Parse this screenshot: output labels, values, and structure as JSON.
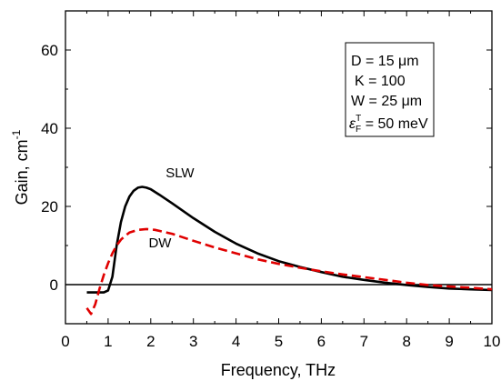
{
  "chart_data": {
    "type": "line",
    "xlabel": "Frequency, THz",
    "ylabel_main": "Gain, cm",
    "ylabel_sup": "-1",
    "xlim": [
      0,
      10
    ],
    "ylim": [
      -10,
      70
    ],
    "xticks": [
      0,
      1,
      2,
      3,
      4,
      5,
      6,
      7,
      8,
      9,
      10
    ],
    "yticks": [
      0,
      20,
      40,
      60
    ],
    "grid": false,
    "zero_line": true,
    "series": [
      {
        "name": "SLW",
        "color": "#000000",
        "dash": "solid",
        "points": [
          [
            0.5,
            -2
          ],
          [
            0.9,
            -2
          ],
          [
            1.0,
            -1.5
          ],
          [
            1.1,
            2
          ],
          [
            1.2,
            10
          ],
          [
            1.3,
            16
          ],
          [
            1.4,
            20
          ],
          [
            1.5,
            22.5
          ],
          [
            1.6,
            24
          ],
          [
            1.7,
            24.8
          ],
          [
            1.8,
            25
          ],
          [
            1.9,
            24.8
          ],
          [
            2.0,
            24.4
          ],
          [
            2.2,
            23
          ],
          [
            2.5,
            20.8
          ],
          [
            3.0,
            17
          ],
          [
            3.5,
            13.5
          ],
          [
            4.0,
            10.5
          ],
          [
            4.5,
            8
          ],
          [
            5.0,
            6
          ],
          [
            5.5,
            4.5
          ],
          [
            6.0,
            3.2
          ],
          [
            6.5,
            2
          ],
          [
            7.0,
            1.2
          ],
          [
            7.5,
            0.5
          ],
          [
            8.0,
            -0.1
          ],
          [
            8.5,
            -0.6
          ],
          [
            9.0,
            -1
          ],
          [
            9.5,
            -1.2
          ],
          [
            10.0,
            -1.4
          ]
        ]
      },
      {
        "name": "DW",
        "color": "#e00000",
        "dash": "dashed",
        "points": [
          [
            0.5,
            -6
          ],
          [
            0.6,
            -7.5
          ],
          [
            0.7,
            -5
          ],
          [
            0.8,
            -1
          ],
          [
            0.9,
            2.5
          ],
          [
            1.0,
            5.5
          ],
          [
            1.1,
            8
          ],
          [
            1.2,
            10
          ],
          [
            1.3,
            11.5
          ],
          [
            1.4,
            12.5
          ],
          [
            1.5,
            13.3
          ],
          [
            1.7,
            14
          ],
          [
            1.9,
            14.2
          ],
          [
            2.1,
            14
          ],
          [
            2.5,
            13
          ],
          [
            3.0,
            11.2
          ],
          [
            3.5,
            9.5
          ],
          [
            4.0,
            8
          ],
          [
            4.5,
            6.5
          ],
          [
            5.0,
            5.3
          ],
          [
            5.5,
            4.3
          ],
          [
            6.0,
            3.4
          ],
          [
            6.5,
            2.6
          ],
          [
            7.0,
            1.9
          ],
          [
            7.5,
            1.2
          ],
          [
            8.0,
            0.5
          ],
          [
            8.5,
            -0.1
          ],
          [
            9.0,
            -0.5
          ],
          [
            9.5,
            -0.8
          ],
          [
            10.0,
            -1.2
          ]
        ]
      }
    ],
    "labels": [
      {
        "text": "SLW",
        "x": 2.35,
        "y": 27.5
      },
      {
        "text": "DW",
        "x": 1.95,
        "y": 9.5
      }
    ],
    "annotation_box": {
      "line1": "D = 15 μm",
      "line2": "K = 100",
      "line3": "W = 25 μm",
      "line4_eps": "ε",
      "line4_sub": "F",
      "line4_sup": "T",
      "line4_rest": " = 50 meV"
    }
  }
}
